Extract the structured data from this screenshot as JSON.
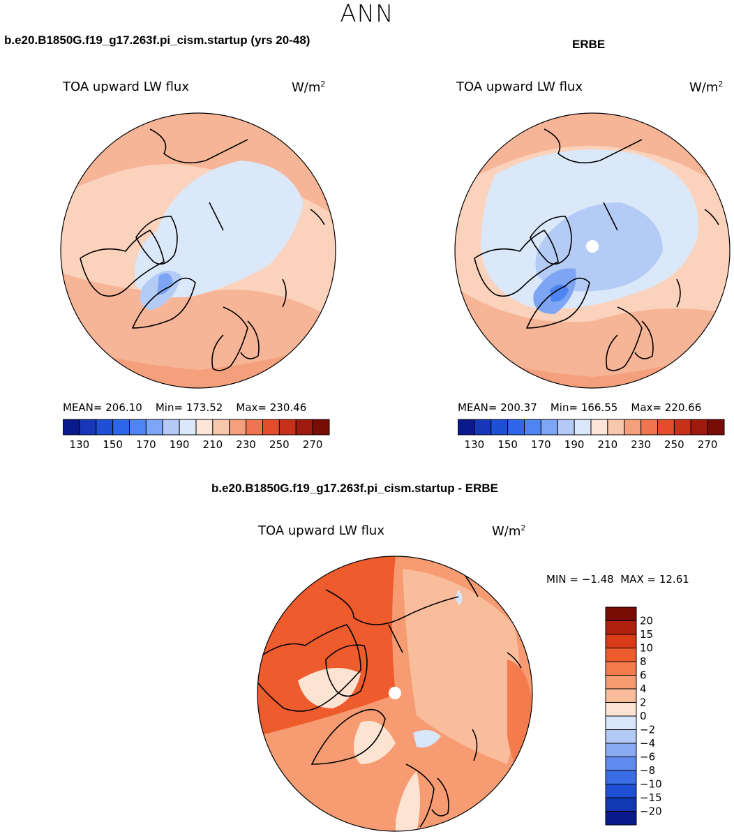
{
  "figure": {
    "title": "ANN",
    "panels": [
      {
        "title": "b.e20.B1850G.f19_g17.263f.pi_cism.startup (yrs 20-48)",
        "variable": "TOA upward LW flux",
        "units": "W/m",
        "units_exp": "2",
        "stats": {
          "mean_label": "MEAN=",
          "mean": "206.10",
          "min_label": "Min=",
          "min": "173.52",
          "max_label": "Max=",
          "max": "230.46"
        }
      },
      {
        "title": "ERBE",
        "variable": "TOA upward LW flux",
        "units": "W/m",
        "units_exp": "2",
        "stats": {
          "mean_label": "MEAN=",
          "mean": "200.37",
          "min_label": "Min=",
          "min": "166.55",
          "max_label": "Max=",
          "max": "220.66"
        }
      },
      {
        "title": "b.e20.B1850G.f19_g17.263f.pi_cism.startup - ERBE",
        "variable": "TOA upward LW flux",
        "units": "W/m",
        "units_exp": "2",
        "stats": {
          "min_label": "MIN =",
          "min": "−1.48",
          "max_label": "MAX =",
          "max": "12.61"
        }
      }
    ]
  },
  "chart_data": [
    {
      "type": "heatmap",
      "projection": "north polar stereographic",
      "title": "b.e20.B1850G.f19_g17.263f.pi_cism.startup (yrs 20-48)",
      "variable": "TOA upward LW flux",
      "units": "W/m^2",
      "mean": 206.1,
      "min": 173.52,
      "max": 230.46,
      "colorbar_levels": [
        130,
        140,
        150,
        160,
        170,
        180,
        190,
        200,
        210,
        220,
        230,
        240,
        250,
        260,
        270
      ],
      "colorbar_tick_labels": [
        "130",
        "150",
        "170",
        "190",
        "210",
        "230",
        "250",
        "270"
      ],
      "colors": [
        "#0a1a8c",
        "#1537b8",
        "#1e4fd6",
        "#2f67ea",
        "#4f85f2",
        "#7ea5f6",
        "#b4c9f7",
        "#dbe7fa",
        "#fde6d8",
        "#f9c8ac",
        "#f4a07c",
        "#ee7550",
        "#e44d2b",
        "#c7301a",
        "#9e1a0e",
        "#7a0c06"
      ]
    },
    {
      "type": "heatmap",
      "projection": "north polar stereographic",
      "title": "ERBE",
      "variable": "TOA upward LW flux",
      "units": "W/m^2",
      "mean": 200.37,
      "min": 166.55,
      "max": 220.66,
      "colorbar_levels": [
        130,
        140,
        150,
        160,
        170,
        180,
        190,
        200,
        210,
        220,
        230,
        240,
        250,
        260,
        270
      ],
      "colorbar_tick_labels": [
        "130",
        "150",
        "170",
        "190",
        "210",
        "230",
        "250",
        "270"
      ],
      "colors": [
        "#0a1a8c",
        "#1537b8",
        "#1e4fd6",
        "#2f67ea",
        "#4f85f2",
        "#7ea5f6",
        "#b4c9f7",
        "#dbe7fa",
        "#fde6d8",
        "#f9c8ac",
        "#f4a07c",
        "#ee7550",
        "#e44d2b",
        "#c7301a",
        "#9e1a0e",
        "#7a0c06"
      ]
    },
    {
      "type": "heatmap",
      "projection": "north polar stereographic",
      "title": "b.e20.B1850G.f19_g17.263f.pi_cism.startup - ERBE",
      "variable": "TOA upward LW flux",
      "units": "W/m^2",
      "min": -1.48,
      "max": 12.61,
      "colorbar_levels": [
        20,
        15,
        10,
        8,
        6,
        4,
        2,
        0,
        -2,
        -4,
        -6,
        -8,
        -10,
        -15,
        -20
      ],
      "colorbar_tick_labels": [
        "20",
        "15",
        "10",
        "8",
        "6",
        "4",
        "2",
        "0",
        "−2",
        "−4",
        "−6",
        "−8",
        "−10",
        "−15",
        "−20"
      ],
      "colors": [
        "#7a0c06",
        "#b0200f",
        "#d93a18",
        "#ee5b2c",
        "#f37b4d",
        "#f69b72",
        "#f9bd9c",
        "#fde3d2",
        "#d7e6fb",
        "#b3caf7",
        "#8aabf4",
        "#5f8bef",
        "#3a6ce6",
        "#1f4fd4",
        "#1238b5",
        "#0a1a8c"
      ]
    }
  ]
}
